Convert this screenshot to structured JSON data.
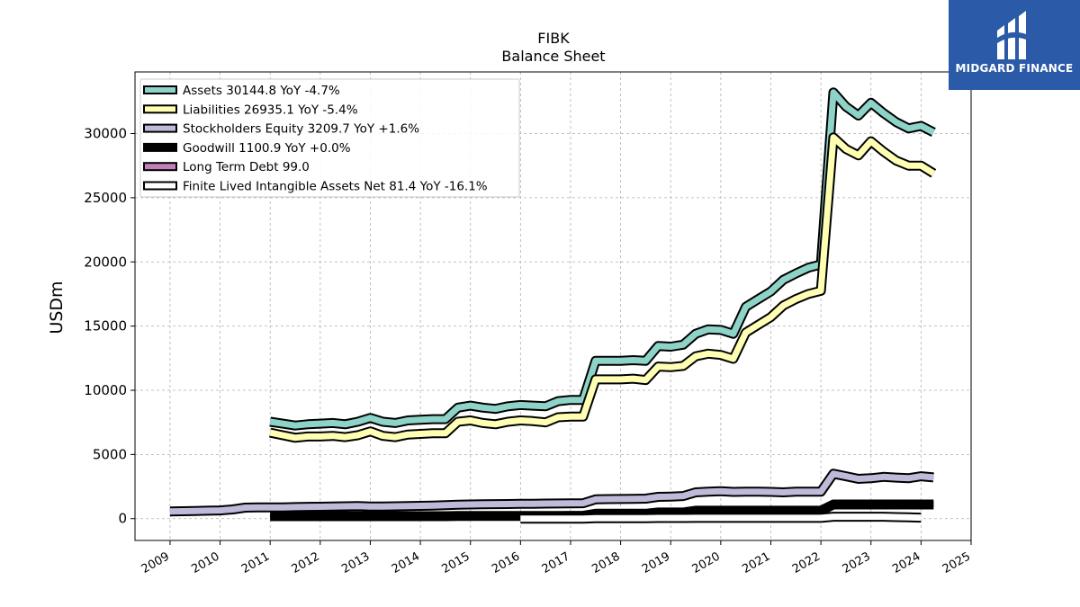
{
  "chart_data": {
    "type": "line",
    "title": "FIBK",
    "subtitle": "Balance  Sheet",
    "ylabel": "USDm",
    "xlim": [
      2008.3,
      2025.0
    ],
    "ylim": [
      -1700,
      34800
    ],
    "grid": true,
    "legend_position": "top-left",
    "x_ticks": [
      2009,
      2010,
      2011,
      2012,
      2013,
      2014,
      2015,
      2016,
      2017,
      2018,
      2019,
      2020,
      2021,
      2022,
      2023,
      2024,
      2025
    ],
    "x_tick_labels": [
      "2009",
      "2010",
      "2011",
      "2012",
      "2013",
      "2014",
      "2015",
      "2016",
      "2017",
      "2018",
      "2019",
      "2020",
      "2021",
      "2022",
      "2023",
      "2024",
      "2025"
    ],
    "y_ticks": [
      0,
      5000,
      10000,
      15000,
      20000,
      25000,
      30000
    ],
    "y_tick_labels": [
      "0",
      "5000",
      "10000",
      "15000",
      "20000",
      "25000",
      "30000"
    ],
    "series": [
      {
        "name": "Assets",
        "legend": "Assets  30144.8 YoY -4.7%",
        "color": "#8dd3c7",
        "x": [
          2011.0,
          2011.25,
          2011.5,
          2011.75,
          2012.0,
          2012.25,
          2012.5,
          2012.75,
          2013.0,
          2013.25,
          2013.5,
          2013.75,
          2014.0,
          2014.25,
          2014.5,
          2014.75,
          2015.0,
          2015.25,
          2015.5,
          2015.75,
          2016.0,
          2016.25,
          2016.5,
          2016.75,
          2017.0,
          2017.25,
          2017.5,
          2017.75,
          2018.0,
          2018.25,
          2018.5,
          2018.75,
          2019.0,
          2019.25,
          2019.5,
          2019.75,
          2020.0,
          2020.25,
          2020.5,
          2020.75,
          2021.0,
          2021.25,
          2021.5,
          2021.75,
          2022.0,
          2022.25,
          2022.5,
          2022.75,
          2023.0,
          2023.25,
          2023.5,
          2023.75,
          2024.0,
          2024.25
        ],
        "values": [
          7550,
          7400,
          7250,
          7350,
          7400,
          7450,
          7350,
          7550,
          7850,
          7550,
          7450,
          7650,
          7700,
          7750,
          7750,
          8650,
          8800,
          8650,
          8550,
          8750,
          8850,
          8800,
          8750,
          9150,
          9250,
          9250,
          12300,
          12300,
          12300,
          12350,
          12300,
          13450,
          13400,
          13550,
          14400,
          14750,
          14700,
          14400,
          16500,
          17100,
          17700,
          18600,
          19100,
          19550,
          19800,
          33200,
          32100,
          31400,
          32400,
          31600,
          30900,
          30400,
          30600,
          30100
        ]
      },
      {
        "name": "Liabilities",
        "legend": "Liabilities  26935.1 YoY -5.4%",
        "color": "#ffffb3",
        "x": [
          2011.0,
          2011.25,
          2011.5,
          2011.75,
          2012.0,
          2012.25,
          2012.5,
          2012.75,
          2013.0,
          2013.25,
          2013.5,
          2013.75,
          2014.0,
          2014.25,
          2014.5,
          2014.75,
          2015.0,
          2015.25,
          2015.5,
          2015.75,
          2016.0,
          2016.25,
          2016.5,
          2016.75,
          2017.0,
          2017.25,
          2017.5,
          2017.75,
          2018.0,
          2018.25,
          2018.5,
          2018.75,
          2019.0,
          2019.25,
          2019.5,
          2019.75,
          2020.0,
          2020.25,
          2020.5,
          2020.75,
          2021.0,
          2021.25,
          2021.5,
          2021.75,
          2022.0,
          2022.25,
          2022.5,
          2022.75,
          2023.0,
          2023.25,
          2023.5,
          2023.75,
          2024.0,
          2024.25
        ],
        "values": [
          6700,
          6500,
          6300,
          6400,
          6400,
          6450,
          6350,
          6500,
          6800,
          6450,
          6350,
          6550,
          6600,
          6650,
          6650,
          7550,
          7650,
          7450,
          7350,
          7550,
          7650,
          7600,
          7500,
          7900,
          7950,
          7950,
          10850,
          10850,
          10850,
          10900,
          10800,
          11850,
          11800,
          11900,
          12650,
          12850,
          12750,
          12450,
          14500,
          15100,
          15700,
          16600,
          17100,
          17500,
          17750,
          29700,
          28800,
          28300,
          29400,
          28600,
          27900,
          27500,
          27500,
          26900
        ]
      },
      {
        "name": "Stockholders Equity",
        "legend": "Stockholders Equity  3209.7 YoY +1.6%",
        "color": "#bebada",
        "x": [
          2009.0,
          2009.25,
          2009.5,
          2009.75,
          2010.0,
          2010.25,
          2010.5,
          2010.75,
          2011.0,
          2011.25,
          2011.5,
          2011.75,
          2012.0,
          2012.25,
          2012.5,
          2012.75,
          2013.0,
          2013.25,
          2013.5,
          2013.75,
          2014.0,
          2014.25,
          2014.5,
          2014.75,
          2015.0,
          2015.25,
          2015.5,
          2015.75,
          2016.0,
          2016.25,
          2016.5,
          2016.75,
          2017.0,
          2017.25,
          2017.5,
          2017.75,
          2018.0,
          2018.25,
          2018.5,
          2018.75,
          2019.0,
          2019.25,
          2019.5,
          2019.75,
          2020.0,
          2020.25,
          2020.5,
          2020.75,
          2021.0,
          2021.25,
          2021.5,
          2021.75,
          2022.0,
          2022.25,
          2022.5,
          2022.75,
          2023.0,
          2023.25,
          2023.5,
          2023.75,
          2024.0,
          2024.25
        ],
        "values": [
          560,
          580,
          600,
          620,
          640,
          720,
          860,
          880,
          870,
          880,
          900,
          920,
          930,
          940,
          960,
          980,
          940,
          950,
          960,
          980,
          1000,
          1020,
          1050,
          1080,
          1100,
          1120,
          1130,
          1140,
          1150,
          1160,
          1170,
          1180,
          1190,
          1200,
          1500,
          1520,
          1530,
          1540,
          1560,
          1700,
          1720,
          1760,
          2050,
          2100,
          2130,
          2080,
          2100,
          2100,
          2080,
          2050,
          2100,
          2100,
          2100,
          3500,
          3300,
          3100,
          3150,
          3250,
          3200,
          3150,
          3300,
          3210
        ]
      },
      {
        "name": "Goodwill",
        "legend": "Goodwill  1100.9 YoY +0.0%",
        "color": "#000000",
        "x": [
          2011.0,
          2011.25,
          2011.5,
          2011.75,
          2012.0,
          2012.25,
          2012.5,
          2012.75,
          2013.0,
          2013.25,
          2013.5,
          2013.75,
          2014.0,
          2014.25,
          2014.5,
          2014.75,
          2015.0,
          2015.25,
          2015.5,
          2015.75,
          2016.0,
          2016.25,
          2016.5,
          2016.75,
          2017.0,
          2017.25,
          2017.5,
          2017.75,
          2018.0,
          2018.25,
          2018.5,
          2018.75,
          2019.0,
          2019.25,
          2019.5,
          2019.75,
          2020.0,
          2020.25,
          2020.5,
          2020.75,
          2021.0,
          2021.25,
          2021.5,
          2021.75,
          2022.0,
          2022.25,
          2022.5,
          2022.75,
          2023.0,
          2023.25,
          2023.5,
          2023.75,
          2024.0,
          2024.25
        ],
        "values": [
          190,
          190,
          190,
          190,
          190,
          190,
          190,
          190,
          190,
          190,
          190,
          190,
          190,
          190,
          190,
          210,
          210,
          210,
          210,
          210,
          210,
          210,
          210,
          210,
          220,
          220,
          380,
          380,
          380,
          380,
          380,
          480,
          480,
          480,
          620,
          620,
          620,
          620,
          620,
          620,
          620,
          620,
          620,
          620,
          620,
          1100,
          1100,
          1100,
          1100,
          1100,
          1100,
          1100,
          1100,
          1100
        ]
      },
      {
        "name": "Long Term Debt",
        "legend": "Long Term Debt  99.0",
        "color": "#c27fb8",
        "x": [],
        "values": []
      },
      {
        "name": "Finite Lived Intangible Assets Net",
        "legend": "Finite Lived Intangible Assets Net  81.4 YoY -16.1%",
        "color": "#ffffff",
        "x": [
          2016.0,
          2016.25,
          2016.5,
          2016.75,
          2017.0,
          2017.25,
          2017.5,
          2017.75,
          2018.0,
          2018.25,
          2018.5,
          2018.75,
          2019.0,
          2019.25,
          2019.5,
          2019.75,
          2020.0,
          2020.25,
          2020.5,
          2020.75,
          2021.0,
          2021.25,
          2021.5,
          2021.75,
          2022.0,
          2022.25,
          2022.5,
          2022.75,
          2023.0,
          2023.25,
          2023.5,
          2023.75,
          2024.0
        ],
        "values": [
          0,
          0,
          0,
          0,
          0,
          0,
          30,
          30,
          30,
          30,
          30,
          50,
          50,
          50,
          60,
          60,
          60,
          60,
          60,
          60,
          60,
          60,
          60,
          60,
          60,
          150,
          150,
          150,
          150,
          150,
          120,
          100,
          81
        ]
      }
    ]
  },
  "logo": {
    "text": "MIDGARD FINANCE",
    "background": "#2b5aa8"
  }
}
